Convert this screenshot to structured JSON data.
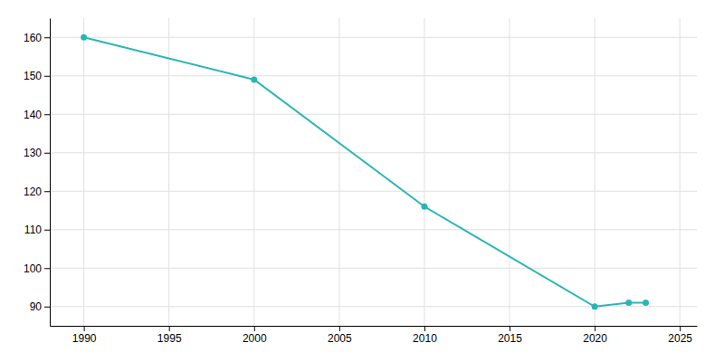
{
  "chart_data": {
    "type": "line",
    "x": [
      1990,
      2000,
      2010,
      2020,
      2022,
      2023
    ],
    "values": [
      160,
      149,
      116,
      90,
      91,
      91
    ],
    "color": "#2ab5b5",
    "marker": "circle",
    "xlim": [
      1988,
      2026
    ],
    "ylim": [
      85,
      165
    ],
    "xticks": [
      1990,
      1995,
      2000,
      2005,
      2010,
      2015,
      2020,
      2025
    ],
    "yticks": [
      90,
      100,
      110,
      120,
      130,
      140,
      150,
      160
    ],
    "grid": true
  }
}
